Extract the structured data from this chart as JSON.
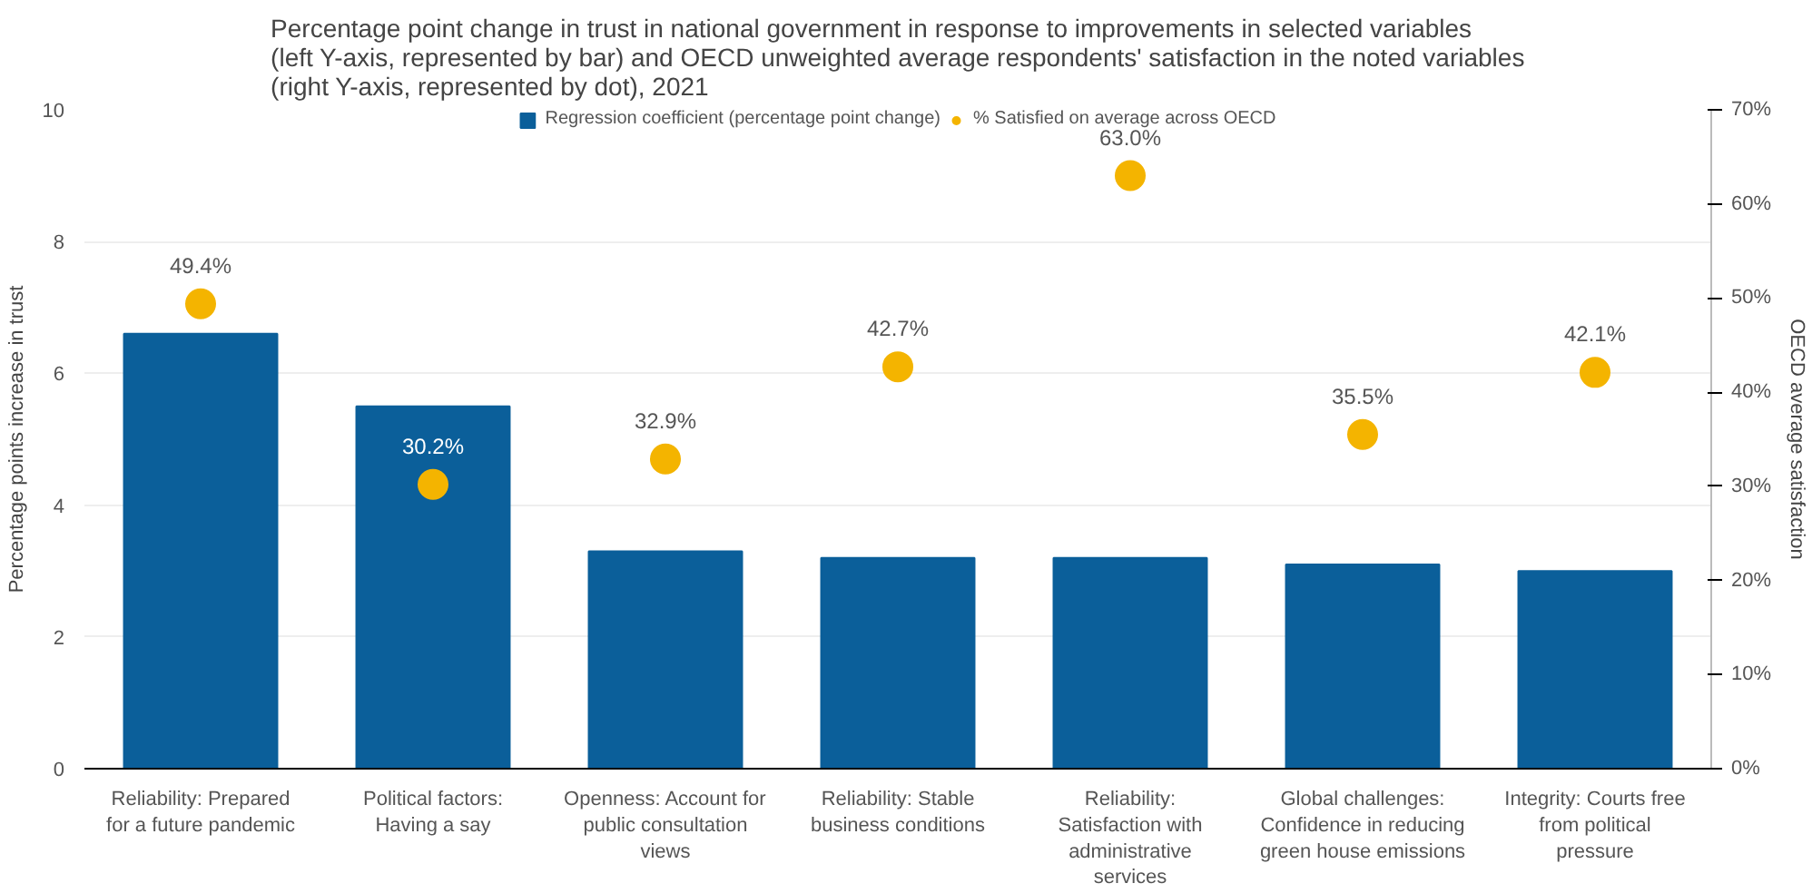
{
  "chart_data": {
    "type": "bar",
    "title": "Percentage point change in trust in national government in response to improvements in selected variables (left Y-axis, represented by bar) and OECD unweighted average respondents' satisfaction in the noted variables (right Y-axis, represented by dot), 2021",
    "categories": [
      "Reliability: Prepared for a future pandemic",
      "Political factors: Having a say",
      "Openness: Account for public consultation views",
      "Reliability: Stable business conditions",
      "Reliability: Satisfaction with administrative services",
      "Global challenges: Confidence in reducing green house emissions",
      "Integrity: Courts free from political pressure"
    ],
    "series": [
      {
        "name": "Regression coefficient (percentage point change)",
        "color": "#0b5f9a",
        "values": [
          6.6,
          5.5,
          3.3,
          3.2,
          3.2,
          3.1,
          3.0
        ]
      },
      {
        "name": "% Satisfied on average across OECD",
        "type": "scatter",
        "axis": "y2",
        "color": "#f4b400",
        "values": [
          49.4,
          30.2,
          32.9,
          42.7,
          63.0,
          35.5,
          42.1
        ],
        "value_labels": [
          "49.4%",
          "30.2%",
          "32.9%",
          "42.7%",
          "63.0%",
          "35.5%",
          "42.1%"
        ]
      }
    ],
    "ylabel": "Percentage points increase in trust",
    "y2label": "OECD average satisfaction",
    "ylim": [
      0,
      10
    ],
    "yticks": [
      0,
      2,
      4,
      6,
      8,
      10
    ],
    "y2lim": [
      0,
      70
    ],
    "y2ticks": [
      {
        "value": 0,
        "label": "0%"
      },
      {
        "value": 10,
        "label": "10%"
      },
      {
        "value": 20,
        "label": "20%"
      },
      {
        "value": 30,
        "label": "30%"
      },
      {
        "value": 40,
        "label": "40%"
      },
      {
        "value": 50,
        "label": "50%"
      },
      {
        "value": 60,
        "label": "60%"
      },
      {
        "value": 70,
        "label": "70%"
      }
    ],
    "grid": "y",
    "legend": "top",
    "marker": "circle"
  }
}
